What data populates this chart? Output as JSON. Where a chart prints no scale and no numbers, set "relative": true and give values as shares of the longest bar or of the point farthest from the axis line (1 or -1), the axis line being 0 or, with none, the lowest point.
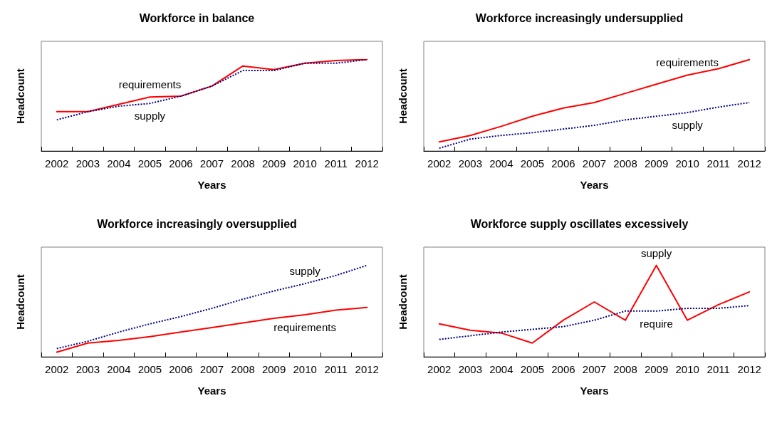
{
  "chart_data": [
    {
      "type": "line",
      "title": "Workforce in balance",
      "xlabel": "Years",
      "ylabel": "Headcount",
      "relative": true,
      "tick_labels": "x",
      "marker": "none",
      "categories": [
        "2002",
        "2003",
        "2004",
        "2005",
        "2006",
        "2007",
        "2008",
        "2009",
        "2010",
        "2011",
        "2012"
      ],
      "series": [
        {
          "name": "requirements",
          "color": "#ff0000",
          "line_style": "solid",
          "values": [
            0.43,
            0.43,
            0.51,
            0.59,
            0.6,
            0.71,
            0.93,
            0.89,
            0.96,
            0.99,
            1
          ]
        },
        {
          "name": "supply",
          "color": "#000080",
          "line_style": "dotted",
          "values": [
            0.34,
            0.43,
            0.49,
            0.52,
            0.6,
            0.71,
            0.88,
            0.88,
            0.96,
            0.96,
            1
          ]
        }
      ]
    },
    {
      "type": "line",
      "title": "Workforce increasingly undersupplied",
      "xlabel": "Years",
      "ylabel": "Headcount",
      "relative": true,
      "tick_labels": "x",
      "marker": "none",
      "categories": [
        "2002",
        "2003",
        "2004",
        "2005",
        "2006",
        "2007",
        "2008",
        "2009",
        "2010",
        "2011",
        "2012"
      ],
      "series": [
        {
          "name": "requirements",
          "color": "#ff0000",
          "line_style": "solid",
          "values": [
            0.1,
            0.17,
            0.27,
            0.38,
            0.47,
            0.53,
            0.63,
            0.73,
            0.83,
            0.9,
            1
          ]
        },
        {
          "name": "supply",
          "color": "#000080",
          "line_style": "dotted",
          "values": [
            0.03,
            0.13,
            0.17,
            0.2,
            0.24,
            0.28,
            0.34,
            0.38,
            0.42,
            0.48,
            0.53
          ]
        }
      ]
    },
    {
      "type": "line",
      "title": "Workforce increasingly oversupplied",
      "xlabel": "Years",
      "ylabel": "Headcount",
      "relative": true,
      "tick_labels": "x",
      "marker": "none",
      "categories": [
        "2002",
        "2003",
        "2004",
        "2005",
        "2006",
        "2007",
        "2008",
        "2009",
        "2010",
        "2011",
        "2012"
      ],
      "series": [
        {
          "name": "requirements",
          "color": "#ff0000",
          "line_style": "solid",
          "values": [
            0.05,
            0.15,
            0.18,
            0.22,
            0.27,
            0.32,
            0.37,
            0.42,
            0.46,
            0.51,
            0.54
          ]
        },
        {
          "name": "supply",
          "color": "#000080",
          "line_style": "dotted",
          "values": [
            0.09,
            0.17,
            0.27,
            0.36,
            0.44,
            0.53,
            0.63,
            0.72,
            0.8,
            0.89,
            1
          ]
        }
      ]
    },
    {
      "type": "line",
      "title": "Workforce supply oscillates excessively",
      "xlabel": "Years",
      "ylabel": "Headcount",
      "relative": true,
      "tick_labels": "x",
      "marker": "none",
      "categories": [
        "2002",
        "2003",
        "2004",
        "2005",
        "2006",
        "2007",
        "2008",
        "2009",
        "2010",
        "2011",
        "2012"
      ],
      "series": [
        {
          "name": "supply",
          "color": "#ff0000",
          "line_style": "solid",
          "values": [
            0.36,
            0.29,
            0.26,
            0.15,
            0.4,
            0.6,
            0.4,
            1,
            0.4,
            0.57,
            0.71
          ]
        },
        {
          "name": "require",
          "color": "#000080",
          "line_style": "dotted",
          "values": [
            0.19,
            0.23,
            0.27,
            0.3,
            0.33,
            0.4,
            0.5,
            0.5,
            0.53,
            0.53,
            0.56
          ]
        }
      ]
    }
  ]
}
